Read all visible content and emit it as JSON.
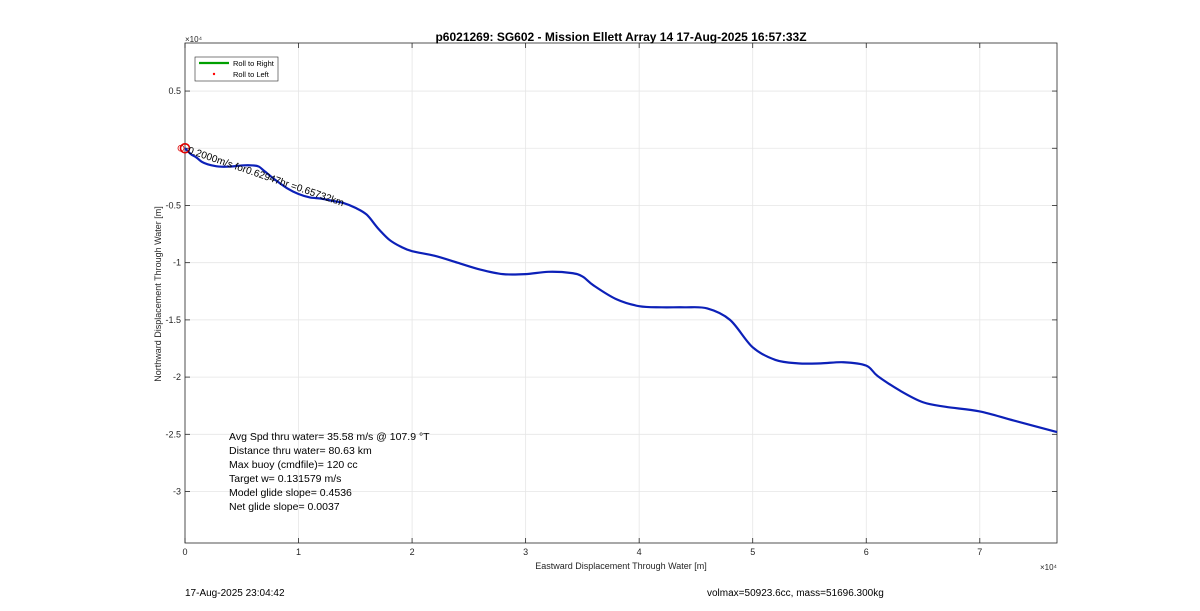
{
  "chart_data": {
    "type": "line",
    "title": "p6021269: SG602 - Mission Ellett Array 14 17-Aug-2025 16:57:33Z",
    "xlabel": "Eastward Displacement Through Water [m]",
    "ylabel": "Northward Displacement Through Water [m]",
    "x_exponent": "×10⁴",
    "y_exponent": "×10⁴",
    "xlim": [
      0,
      7.68
    ],
    "ylim": [
      -3.45,
      0.92
    ],
    "xticks": [
      0,
      1,
      2,
      3,
      4,
      5,
      6,
      7
    ],
    "yticks": [
      0.5,
      -0.5,
      -1,
      -1.5,
      -2,
      -2.5,
      -3
    ],
    "xtick_labels": [
      "0",
      "1",
      "2",
      "3",
      "4",
      "5",
      "6",
      "7"
    ],
    "ytick_labels": [
      "0.5",
      "-0.5",
      "-1",
      "-1.5",
      "-2",
      "-2.5",
      "-3"
    ],
    "grid": true,
    "legend_position": "top-left",
    "legend": [
      {
        "label": "Roll to Right",
        "color": "#00a000",
        "style": "line"
      },
      {
        "label": "Roll to Left",
        "color": "#ff0000",
        "style": "marker"
      }
    ],
    "series": [
      {
        "name": "track",
        "color": "#0c20b8",
        "x": [
          0.0,
          0.05,
          0.1,
          0.15,
          0.2,
          0.3,
          0.4,
          0.5,
          0.6,
          0.65,
          0.7,
          0.8,
          0.9,
          1.0,
          1.1,
          1.2,
          1.3,
          1.4,
          1.5,
          1.6,
          1.7,
          1.8,
          1.9,
          2.0,
          2.2,
          2.4,
          2.6,
          2.8,
          3.0,
          3.2,
          3.4,
          3.5,
          3.6,
          3.8,
          4.0,
          4.2,
          4.4,
          4.6,
          4.8,
          5.0,
          5.2,
          5.4,
          5.6,
          5.8,
          6.0,
          6.1,
          6.3,
          6.5,
          6.7,
          7.0,
          7.3,
          7.68
        ],
        "y": [
          0.0,
          -0.05,
          -0.08,
          -0.12,
          -0.14,
          -0.16,
          -0.16,
          -0.15,
          -0.15,
          -0.16,
          -0.2,
          -0.28,
          -0.35,
          -0.4,
          -0.43,
          -0.44,
          -0.46,
          -0.48,
          -0.52,
          -0.58,
          -0.7,
          -0.8,
          -0.86,
          -0.9,
          -0.94,
          -1.0,
          -1.06,
          -1.1,
          -1.1,
          -1.08,
          -1.09,
          -1.12,
          -1.2,
          -1.32,
          -1.38,
          -1.39,
          -1.39,
          -1.4,
          -1.5,
          -1.74,
          -1.85,
          -1.88,
          -1.88,
          -1.87,
          -1.9,
          -1.99,
          -2.12,
          -2.22,
          -2.26,
          -2.3,
          -2.38,
          -2.48
        ]
      }
    ],
    "annotations": [
      {
        "text": "0.2000m/s for0.62947hr =0.65732km",
        "x": 0.02,
        "y": -0.04,
        "rotation_deg": 19
      }
    ],
    "markers": [
      {
        "type": "circle",
        "color": "#dd0000",
        "x": 0.0,
        "y": 0.0
      }
    ],
    "stats": [
      "Avg Spd thru water= 35.58 m/s @ 107.9 °T",
      "Distance thru water= 80.63 km",
      "Max buoy (cmdfile)= 120 cc",
      "Target w= 0.131579 m/s",
      "Model glide slope= 0.4536",
      "Net glide slope= 0.0037"
    ]
  },
  "footer": {
    "left": "17-Aug-2025 23:04:42",
    "right": "volmax=50923.6cc, mass=51696.300kg"
  }
}
